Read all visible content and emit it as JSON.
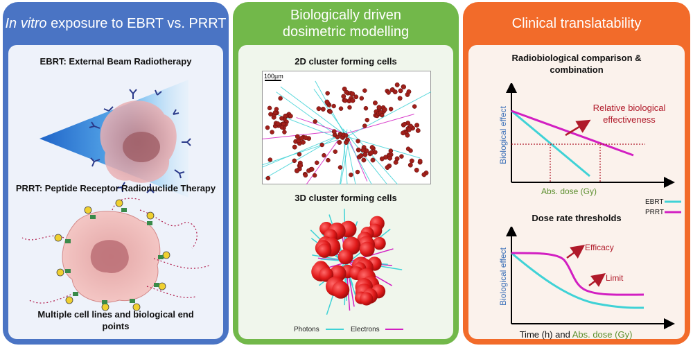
{
  "panel1": {
    "title_italic": "In vitro",
    "title_rest": " exposure to EBRT vs. PRRT",
    "ebrt_label": "EBRT: External Beam Radiotherapy",
    "prrt_label": "PRRT: Peptide Receptor Radionuclide Therapy",
    "footer_line1": "Multiple cell lines and biological end",
    "footer_line2": "points"
  },
  "panel2": {
    "title_line1": "Biologically driven",
    "title_line2": "dosimetric modelling",
    "cluster2d_label": "2D cluster forming cells",
    "scale_bar": "100µm",
    "cluster3d_label": "3D cluster forming cells",
    "legend_photons": "Photons",
    "legend_electrons": "Electrons"
  },
  "panel3": {
    "title": "Clinical translatability",
    "comparison_title_line1": "Radiobiological comparison &",
    "comparison_title_line2": "combination",
    "y_label": "Biological effect",
    "rbe_line1": "Relative biological",
    "rbe_line2": "effectiveness",
    "x_label_1": "Abs. dose (Gy)",
    "legend_ebrt": "EBRT",
    "legend_prrt": "PRRT",
    "thresholds_title": "Dose rate thresholds",
    "efficacy_label": "Efficacy",
    "limit_label": "Limit",
    "x_label_2a": "Time (h) and ",
    "x_label_2b": "Abs. dose (Gy)"
  },
  "colors": {
    "blue_panel": "#4a74c4",
    "green_panel": "#72b84a",
    "orange_panel": "#f26b2a",
    "ebrt": "#3fd2d6",
    "prrt": "#d21fc2",
    "dark_red": "#b01a2a",
    "axis_blue": "#3a6fb8",
    "axis_green": "#5c8f2e"
  }
}
